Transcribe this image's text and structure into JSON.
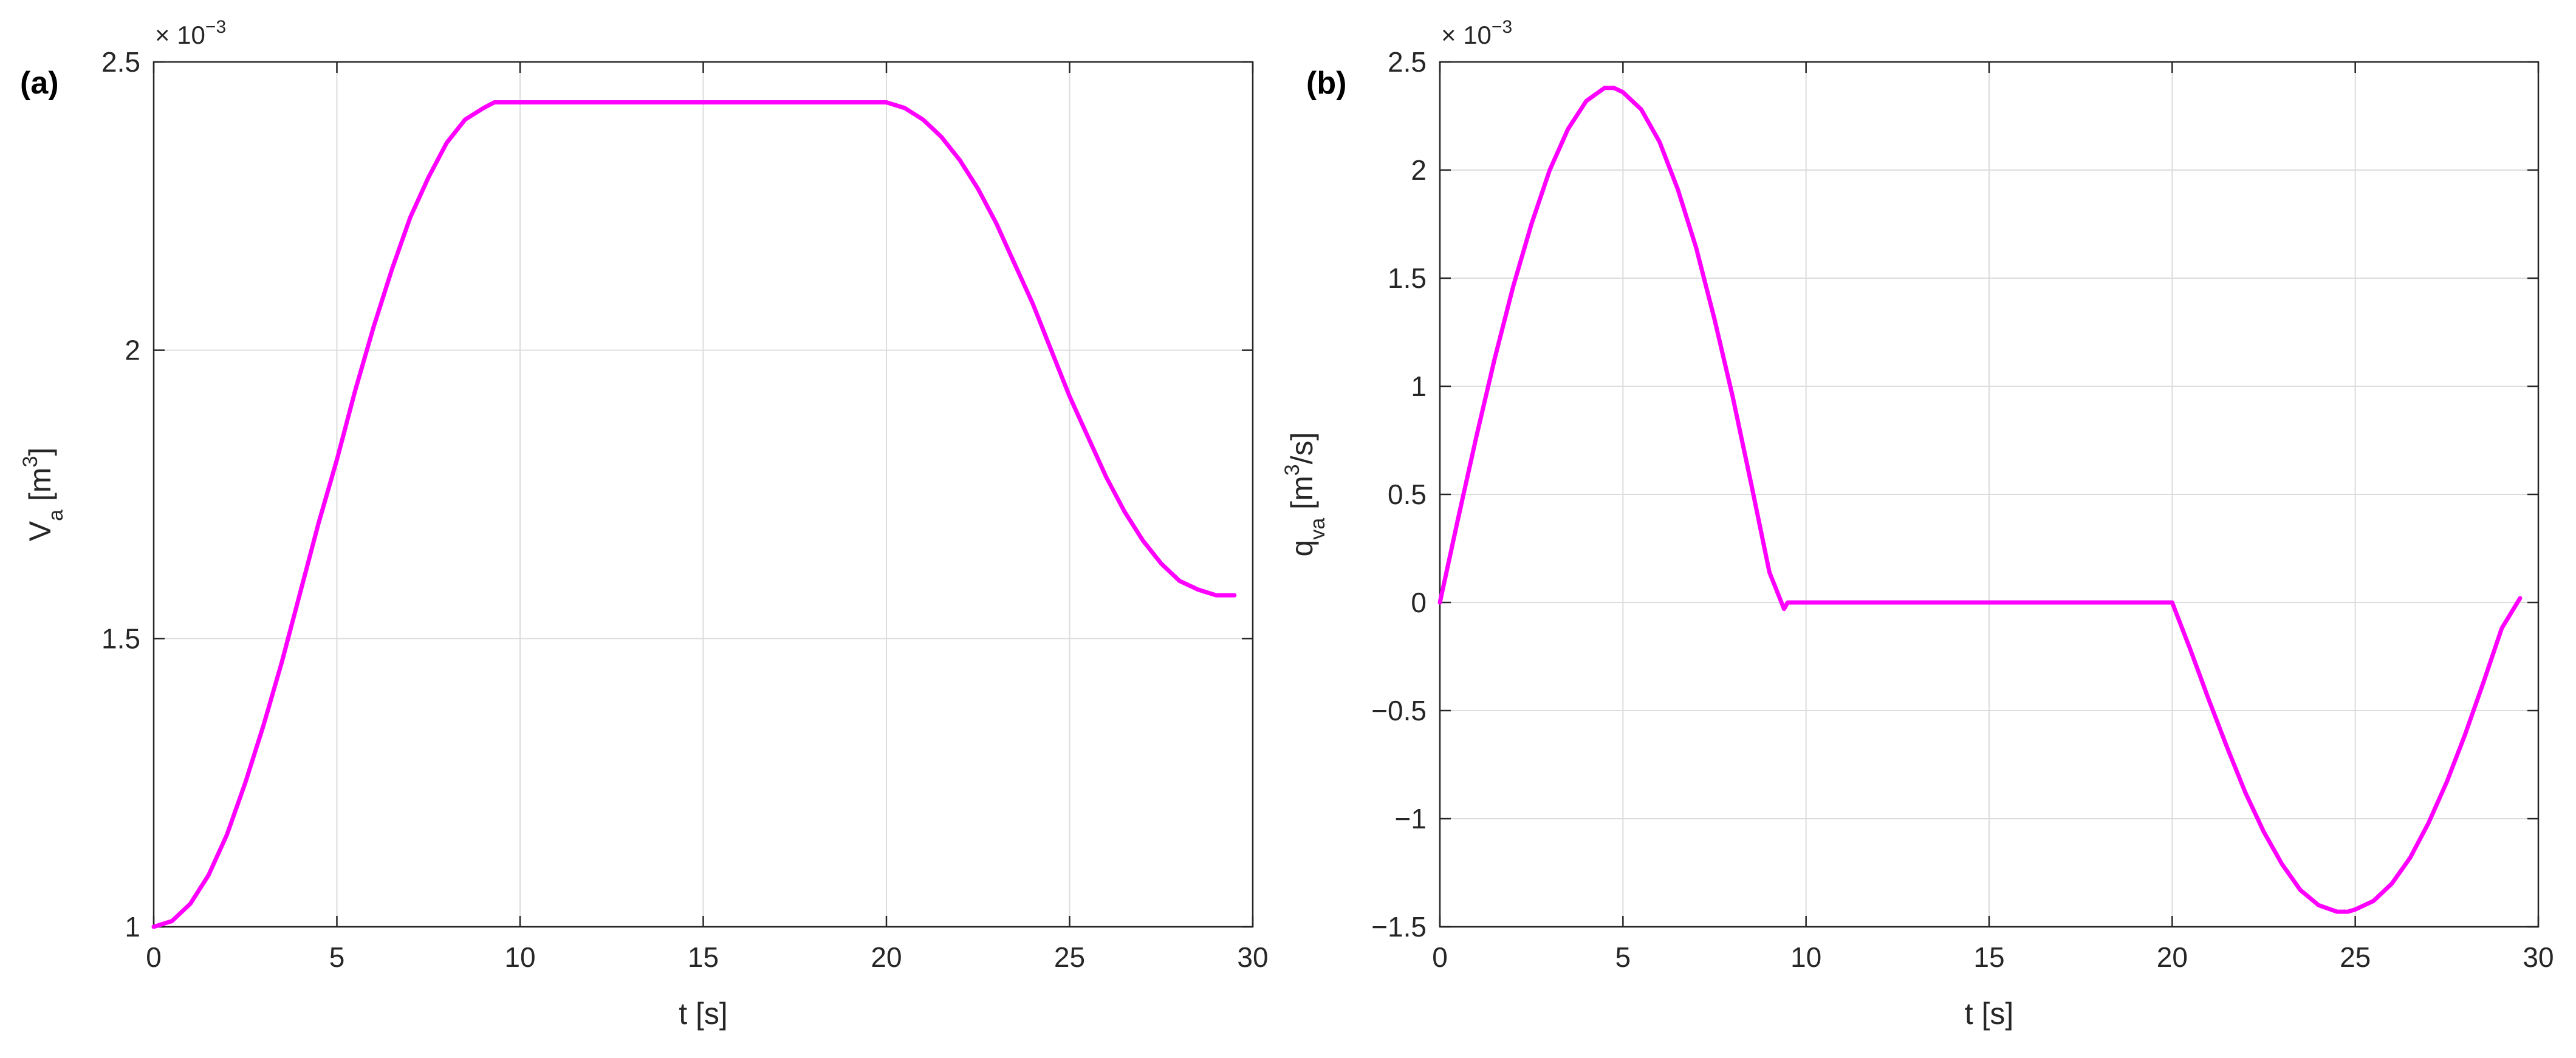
{
  "chart_data": [
    {
      "type": "line",
      "panel_label": "(a)",
      "title": "",
      "xlabel": "t [s]",
      "ylabel": {
        "main": "V",
        "sub": "a",
        "unit_open": " [m",
        "unit_sup": "3",
        "unit_close": "]"
      },
      "xlim": [
        0,
        30
      ],
      "ylim": [
        1,
        2.5
      ],
      "y_exponent": {
        "base": "× 10",
        "power": "−3"
      },
      "xticks": [
        0,
        5,
        10,
        15,
        20,
        25,
        30
      ],
      "xtick_labels": [
        "0",
        "5",
        "10",
        "15",
        "20",
        "25",
        "30"
      ],
      "yticks": [
        1,
        1.5,
        2,
        2.5
      ],
      "ytick_labels": [
        "1",
        "1.5",
        "2",
        "2.5"
      ],
      "grid": true,
      "series": [
        {
          "color": "#ff00ff",
          "x": [
            0,
            0.5,
            1,
            1.5,
            2,
            2.5,
            3,
            3.5,
            4,
            4.5,
            5,
            5.5,
            6,
            6.5,
            7,
            7.5,
            8,
            8.5,
            9,
            9.3,
            9.5,
            10,
            12,
            14,
            16,
            18,
            20,
            20.5,
            21,
            21.5,
            22,
            22.5,
            23,
            23.5,
            24,
            24.5,
            25,
            25.5,
            26,
            26.5,
            27,
            27.5,
            28,
            28.5,
            29,
            29.5
          ],
          "y": [
            1.0,
            1.01,
            1.04,
            1.09,
            1.16,
            1.25,
            1.35,
            1.46,
            1.58,
            1.7,
            1.81,
            1.93,
            2.04,
            2.14,
            2.23,
            2.3,
            2.36,
            2.4,
            2.42,
            2.43,
            2.43,
            2.43,
            2.43,
            2.43,
            2.43,
            2.43,
            2.43,
            2.42,
            2.4,
            2.37,
            2.33,
            2.28,
            2.22,
            2.15,
            2.08,
            2.0,
            1.92,
            1.85,
            1.78,
            1.72,
            1.67,
            1.63,
            1.6,
            1.585,
            1.575,
            1.575
          ]
        }
      ]
    },
    {
      "type": "line",
      "panel_label": "(b)",
      "title": "",
      "xlabel": "t [s]",
      "ylabel": {
        "main": "q",
        "sub": "va",
        "unit_open": " [m",
        "unit_sup": "3",
        "unit_close": "/s]"
      },
      "xlim": [
        0,
        30
      ],
      "ylim": [
        -1.5,
        2.5
      ],
      "y_exponent": {
        "base": "× 10",
        "power": "−3"
      },
      "xticks": [
        0,
        5,
        10,
        15,
        20,
        25,
        30
      ],
      "xtick_labels": [
        "0",
        "5",
        "10",
        "15",
        "20",
        "25",
        "30"
      ],
      "yticks": [
        -1.5,
        -1,
        -0.5,
        0,
        0.5,
        1,
        1.5,
        2,
        2.5
      ],
      "ytick_labels": [
        "−1.5",
        "−1",
        "−0.5",
        "0",
        "0.5",
        "1",
        "1.5",
        "2",
        "2.5"
      ],
      "grid": true,
      "series": [
        {
          "color": "#ff00ff",
          "x": [
            0,
            0.5,
            1,
            1.5,
            2,
            2.5,
            3,
            3.5,
            4,
            4.5,
            4.75,
            5,
            5.5,
            6,
            6.5,
            7,
            7.5,
            8,
            8.5,
            9,
            9.4,
            9.5,
            9.6,
            12,
            15,
            18,
            20,
            20.5,
            21,
            21.5,
            22,
            22.5,
            23,
            23.5,
            24,
            24.5,
            24.8,
            25,
            25.5,
            26,
            26.5,
            27,
            27.5,
            28,
            28.5,
            29,
            29.5
          ],
          "y": [
            0,
            0.39,
            0.77,
            1.13,
            1.46,
            1.75,
            2.0,
            2.19,
            2.32,
            2.38,
            2.38,
            2.36,
            2.28,
            2.13,
            1.91,
            1.64,
            1.31,
            0.95,
            0.55,
            0.14,
            -0.03,
            0,
            0,
            0,
            0,
            0,
            0,
            -0.22,
            -0.45,
            -0.67,
            -0.88,
            -1.06,
            -1.21,
            -1.33,
            -1.4,
            -1.43,
            -1.43,
            -1.42,
            -1.38,
            -1.3,
            -1.18,
            -1.02,
            -0.83,
            -0.61,
            -0.37,
            -0.12,
            0.02
          ]
        }
      ]
    }
  ]
}
